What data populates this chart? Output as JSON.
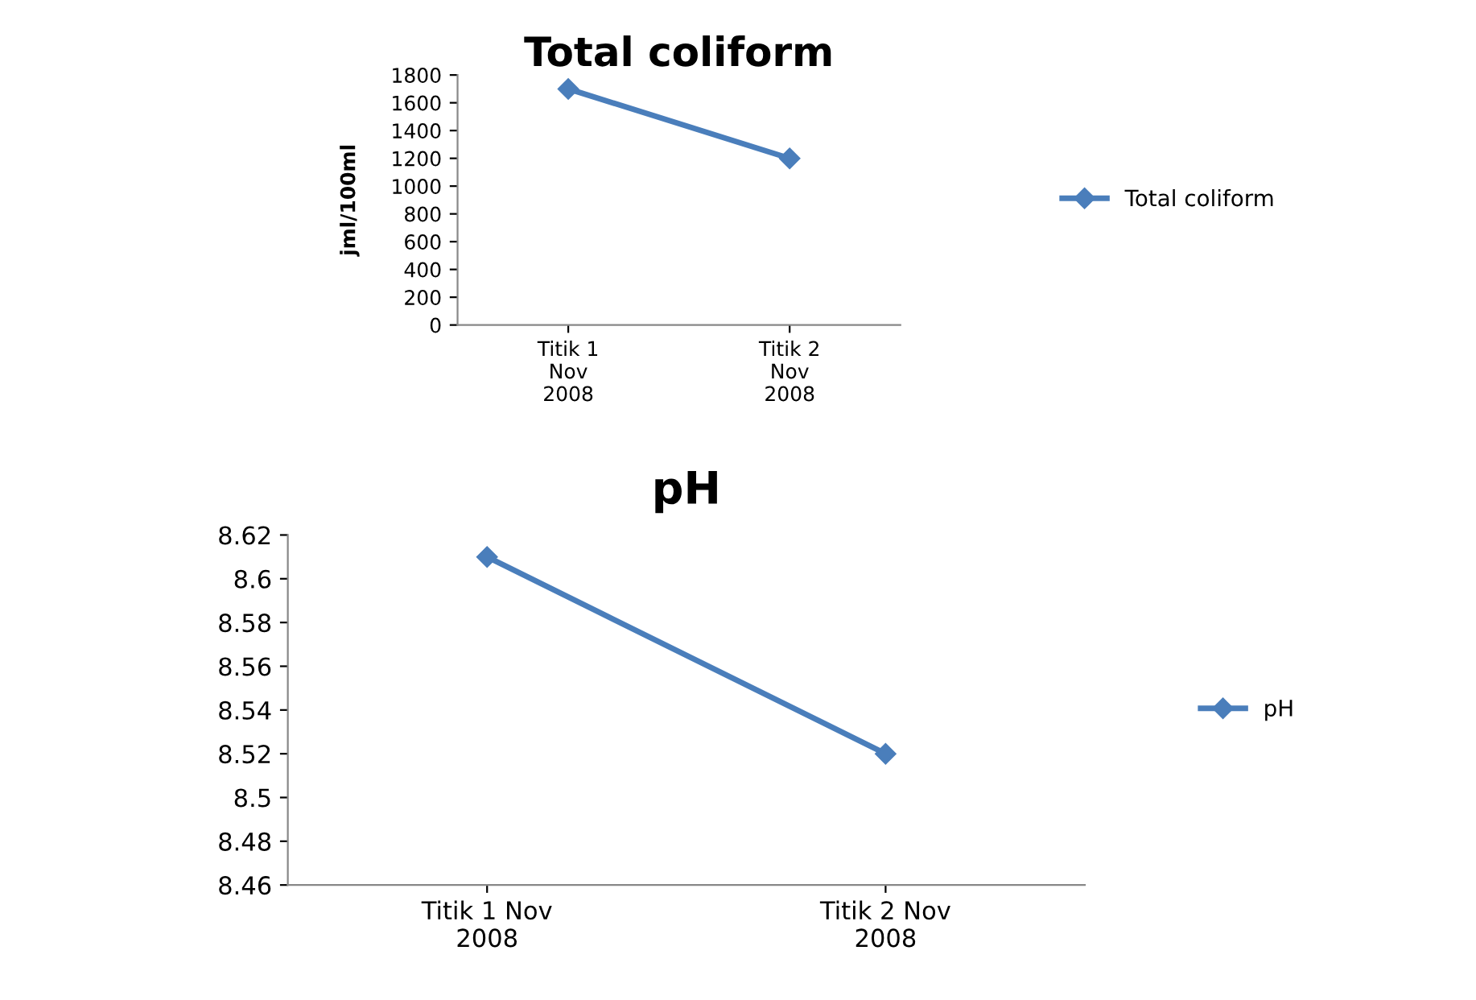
{
  "chart_data": [
    {
      "type": "line",
      "title": "Total coliform",
      "ylabel": "jml/100ml",
      "categories": [
        "Titik 1 Nov 2008",
        "Titik 2 Nov 2008"
      ],
      "series": [
        {
          "name": "Total coliform",
          "color": "#4a7ebb",
          "values": [
            1700,
            1200
          ]
        }
      ],
      "ylim": [
        0,
        1800
      ],
      "yticks": [
        0,
        200,
        400,
        600,
        800,
        1000,
        1200,
        1400,
        1600,
        1800
      ],
      "marker": "diamond",
      "legend": "right",
      "grid": false
    },
    {
      "type": "line",
      "title": "pH",
      "categories": [
        "Titik 1 Nov 2008",
        "Titik 2 Nov 2008"
      ],
      "series": [
        {
          "name": "pH",
          "color": "#4a7ebb",
          "values": [
            8.61,
            8.52
          ]
        }
      ],
      "ylim": [
        8.46,
        8.62
      ],
      "yticks": [
        8.46,
        8.48,
        8.5,
        8.52,
        8.54,
        8.56,
        8.58,
        8.6,
        8.62
      ],
      "marker": "diamond",
      "legend": "right",
      "grid": false
    }
  ]
}
